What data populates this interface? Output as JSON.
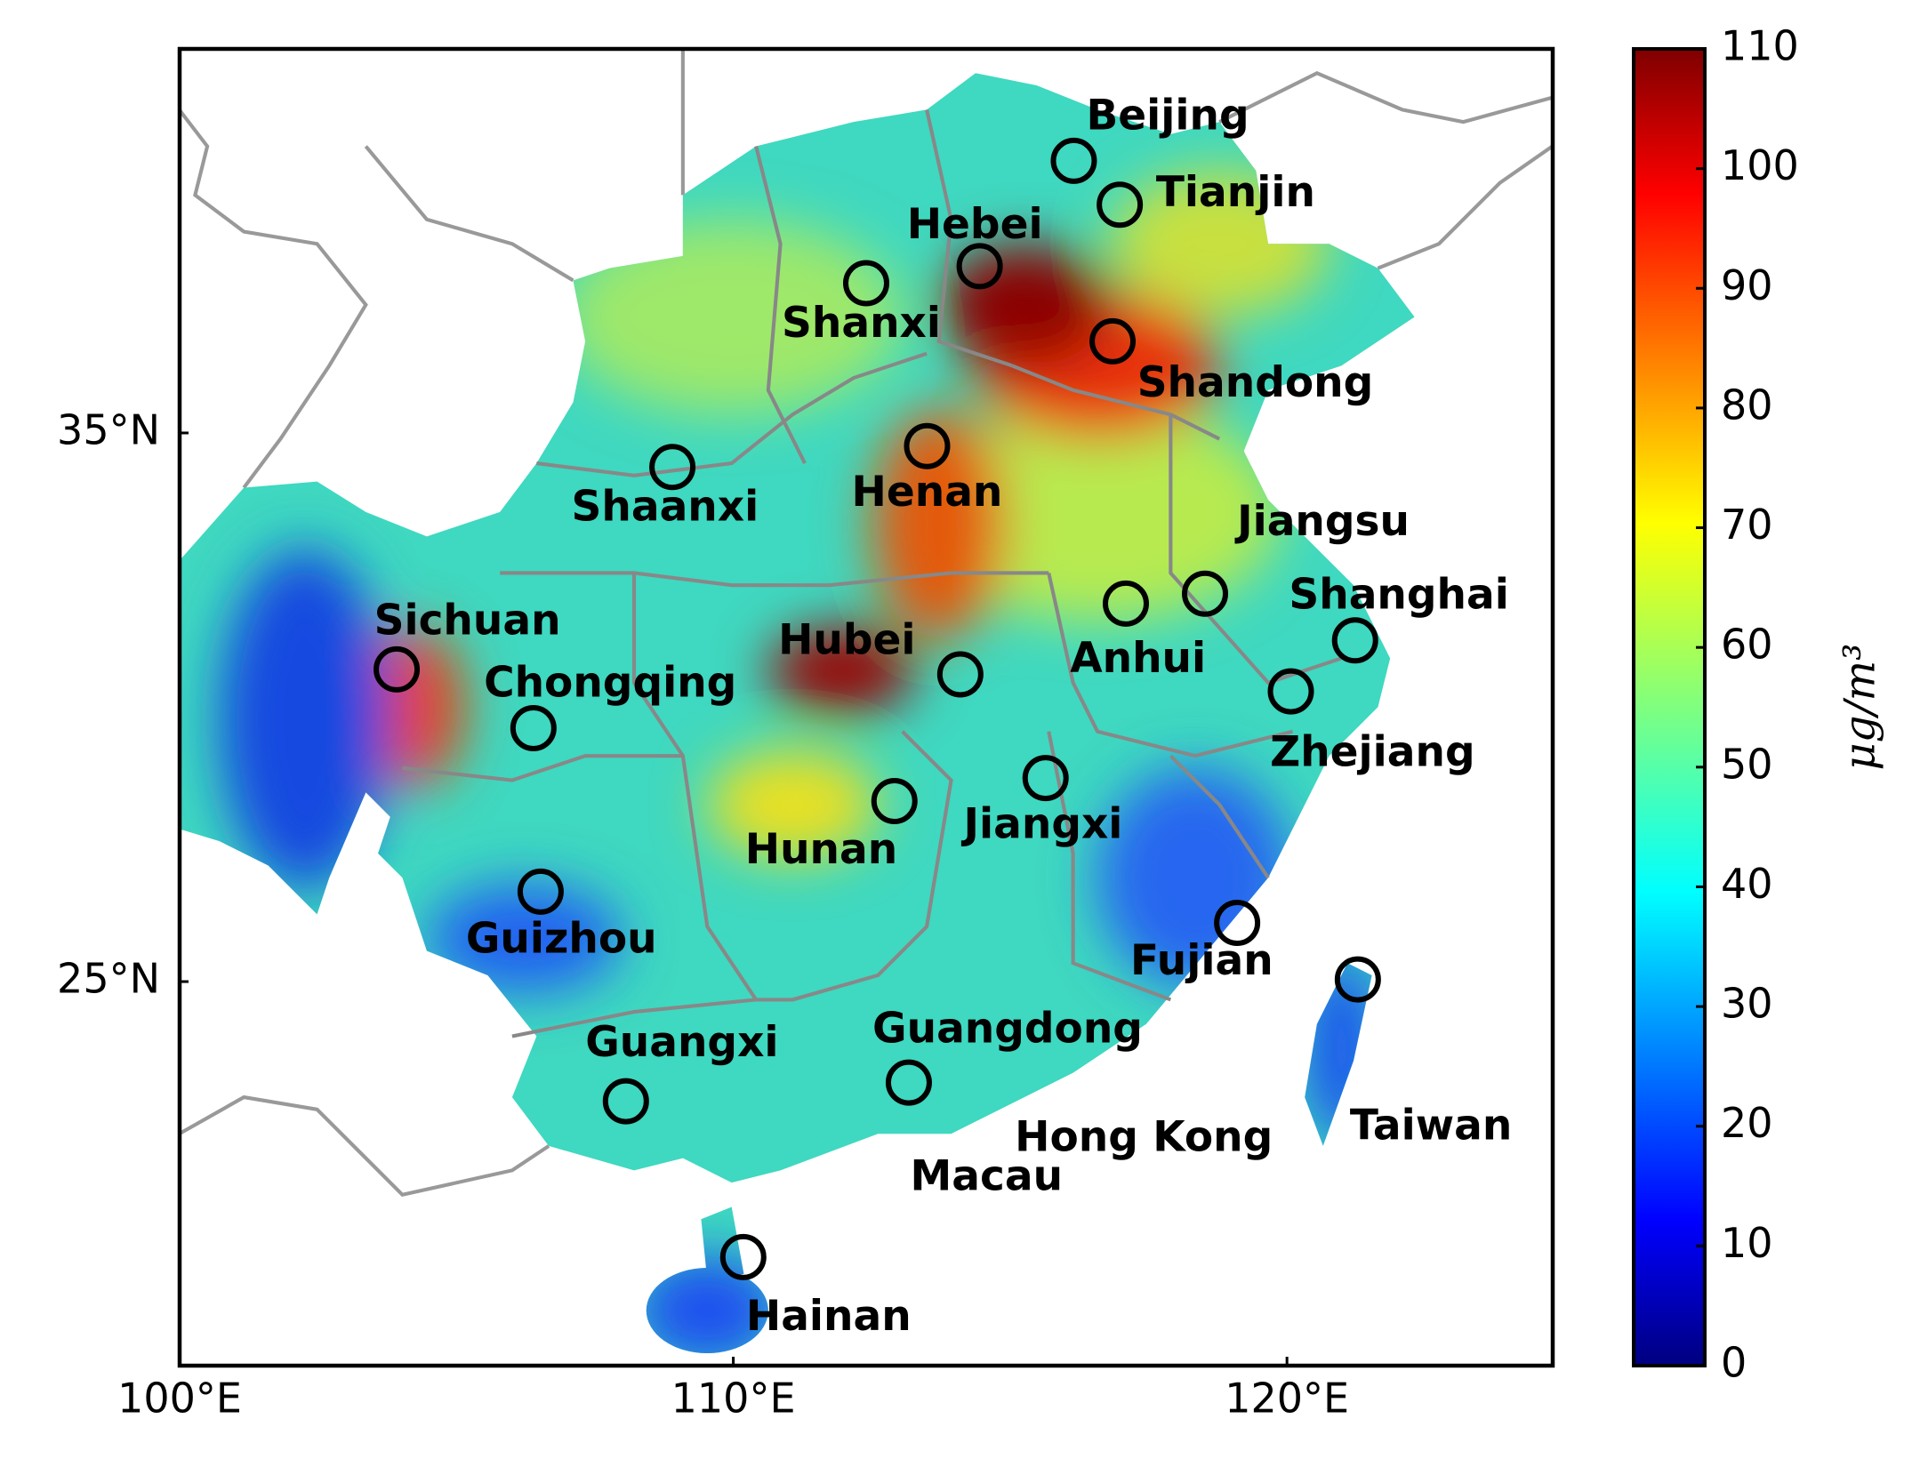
{
  "chart_data": {
    "type": "map",
    "xlim": [
      100,
      124.8
    ],
    "ylim": [
      18,
      42
    ],
    "xticks": [
      {
        "value": 100,
        "label": "100°E"
      },
      {
        "value": 110,
        "label": "110°E"
      },
      {
        "value": 120,
        "label": "120°E"
      }
    ],
    "yticks": [
      {
        "value": 25,
        "label": "25°N"
      },
      {
        "value": 35,
        "label": "35°N"
      }
    ],
    "colorbar": {
      "label": "μg/m³",
      "lim": [
        0,
        110
      ],
      "ticks": [
        0,
        10,
        20,
        30,
        40,
        50,
        60,
        70,
        80,
        90,
        100,
        110
      ]
    },
    "sites": [
      {
        "name": "Beijing",
        "lon": 116.15,
        "lat": 39.96
      },
      {
        "name": "Tianjin",
        "lon": 116.98,
        "lat": 39.16
      },
      {
        "name": "Hebei",
        "lon": 114.45,
        "lat": 38.04
      },
      {
        "name": "Shanxi",
        "lon": 112.4,
        "lat": 37.73
      },
      {
        "name": "Shandong",
        "lon": 116.85,
        "lat": 36.67
      },
      {
        "name": "Henan",
        "lon": 113.5,
        "lat": 34.76
      },
      {
        "name": "Shaanxi",
        "lon": 108.9,
        "lat": 34.38
      },
      {
        "name": "Jiangsu",
        "lon": 118.52,
        "lat": 32.07
      },
      {
        "name": "Anhui",
        "lon": 117.09,
        "lat": 31.89
      },
      {
        "name": "Shanghai",
        "lon": 121.23,
        "lat": 31.22
      },
      {
        "name": "Hubei",
        "lon": 114.1,
        "lat": 30.6
      },
      {
        "name": "Sichuan",
        "lon": 103.92,
        "lat": 30.69
      },
      {
        "name": "Chongqing",
        "lon": 106.39,
        "lat": 29.62
      },
      {
        "name": "Zhejiang",
        "lon": 120.07,
        "lat": 30.29
      },
      {
        "name": "Jiangxi",
        "lon": 115.64,
        "lat": 28.71
      },
      {
        "name": "Hunan",
        "lon": 112.91,
        "lat": 28.29
      },
      {
        "name": "Guizhou",
        "lon": 106.52,
        "lat": 26.64
      },
      {
        "name": "Fujian",
        "lon": 119.1,
        "lat": 26.07
      },
      {
        "name": "Taiwan",
        "lon": 121.28,
        "lat": 25.04
      },
      {
        "name": "Guangdong",
        "lon": 113.17,
        "lat": 23.16
      },
      {
        "name": "Guangxi",
        "lon": 108.06,
        "lat": 22.82
      },
      {
        "name": "Hainan",
        "lon": 110.18,
        "lat": 19.98
      }
    ],
    "labels": [
      "Hong Kong",
      "Macau"
    ]
  }
}
